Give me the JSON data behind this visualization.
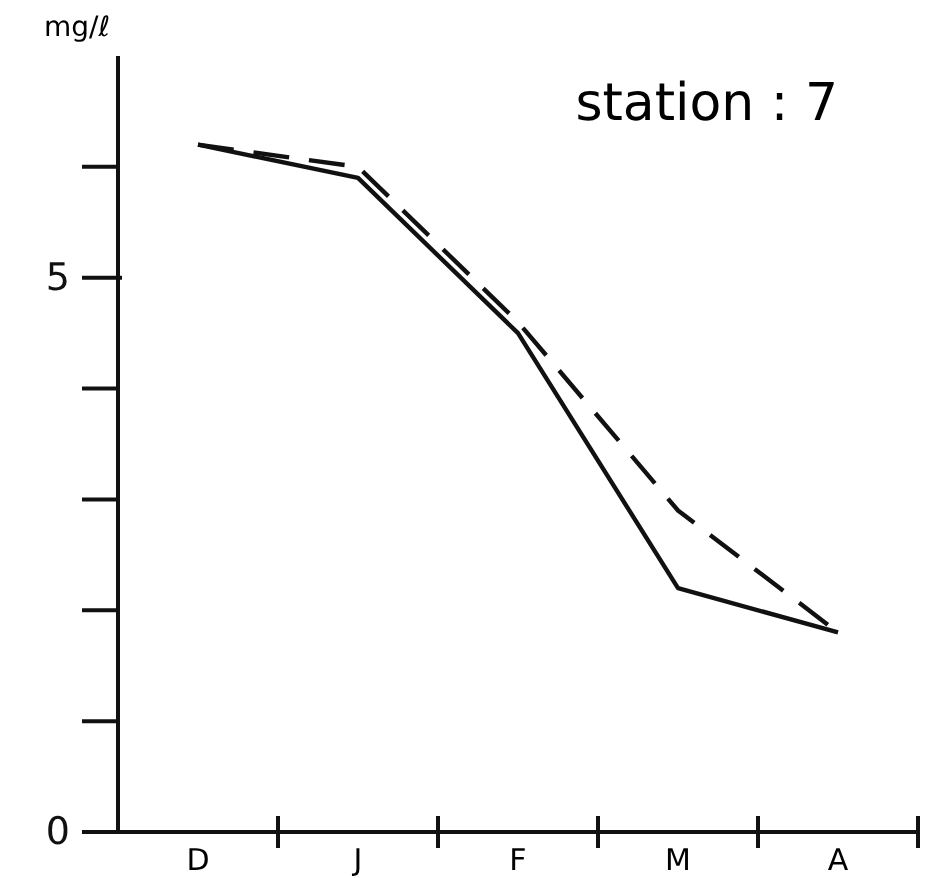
{
  "chart_data": {
    "type": "line",
    "title": "station : 7",
    "ylabel": "mg/ℓ",
    "categories": [
      "D",
      "J",
      "F",
      "M",
      "A"
    ],
    "ylim": [
      0,
      7
    ],
    "yticks": [
      0,
      5
    ],
    "series": [
      {
        "color": "#111111",
        "line_style": "solid",
        "values": [
          6.2,
          5.9,
          4.5,
          2.2,
          1.8
        ]
      },
      {
        "color": "#111111",
        "line_style": "dashed",
        "values": [
          6.2,
          6.0,
          4.6,
          2.9,
          1.8
        ]
      }
    ],
    "grid": false,
    "marker": "none"
  }
}
